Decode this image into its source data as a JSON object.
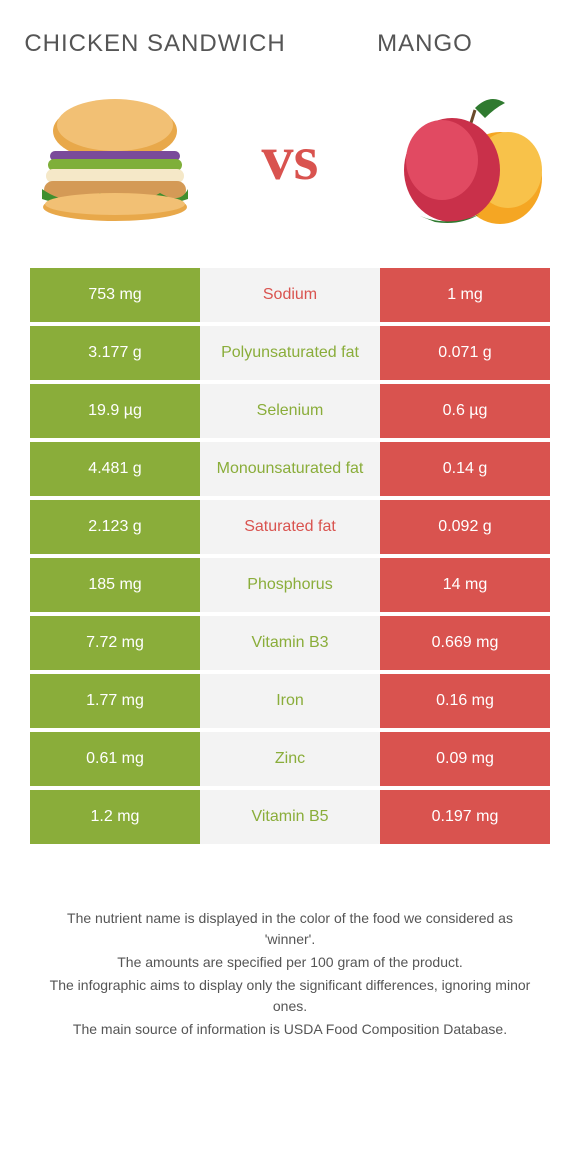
{
  "colors": {
    "left": "#8aad3a",
    "right": "#d9534f",
    "mid_bg": "#f3f3f3",
    "vs": "#d9534f"
  },
  "header": {
    "left_title": "Chicken Sandwich",
    "right_title": "Mango",
    "vs_label": "vs"
  },
  "nutrients": [
    {
      "label": "Sodium",
      "left": "753 mg",
      "right": "1 mg",
      "winner": "right"
    },
    {
      "label": "Polyunsaturated fat",
      "left": "3.177 g",
      "right": "0.071 g",
      "winner": "left"
    },
    {
      "label": "Selenium",
      "left": "19.9 µg",
      "right": "0.6 µg",
      "winner": "left"
    },
    {
      "label": "Monounsaturated fat",
      "left": "4.481 g",
      "right": "0.14 g",
      "winner": "left"
    },
    {
      "label": "Saturated fat",
      "left": "2.123 g",
      "right": "0.092 g",
      "winner": "right"
    },
    {
      "label": "Phosphorus",
      "left": "185 mg",
      "right": "14 mg",
      "winner": "left"
    },
    {
      "label": "Vitamin B3",
      "left": "7.72 mg",
      "right": "0.669 mg",
      "winner": "left"
    },
    {
      "label": "Iron",
      "left": "1.77 mg",
      "right": "0.16 mg",
      "winner": "left"
    },
    {
      "label": "Zinc",
      "left": "0.61 mg",
      "right": "0.09 mg",
      "winner": "left"
    },
    {
      "label": "Vitamin B5",
      "left": "1.2 mg",
      "right": "0.197 mg",
      "winner": "left"
    }
  ],
  "footnotes": [
    "The nutrient name is displayed in the color of the food we considered as 'winner'.",
    "The amounts are specified per 100 gram of the product.",
    "The infographic aims to display only the significant differences, ignoring minor ones.",
    "The main source of information is USDA Food Composition Database."
  ]
}
